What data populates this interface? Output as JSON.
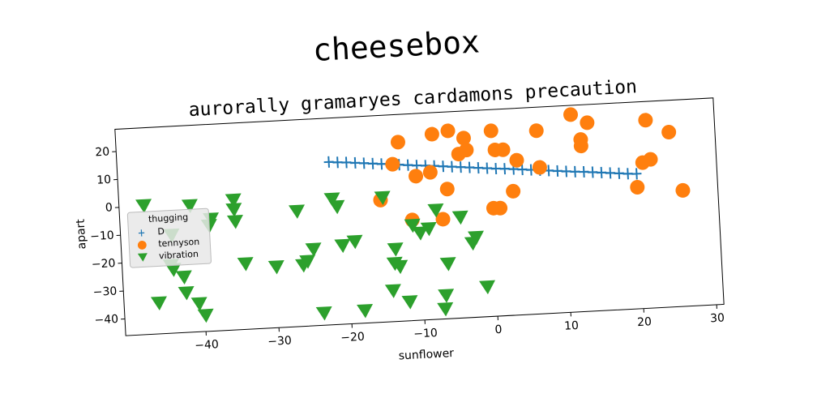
{
  "chart_data": {
    "type": "scatter",
    "suptitle": "cheesebox",
    "title": "aurorally gramaryes cardamons precaution",
    "xlabel": "sunflower",
    "ylabel": "apart",
    "legend_title": "thugging",
    "legend": "center left",
    "xlim": [
      -51,
      31
    ],
    "ylim": [
      -46,
      28
    ],
    "xticks": [
      {
        "value": -40,
        "label": "−40"
      },
      {
        "value": -30,
        "label": "−30"
      },
      {
        "value": -20,
        "label": "−20"
      },
      {
        "value": -10,
        "label": "−10"
      },
      0,
      10,
      20,
      30
    ],
    "yticks": [
      {
        "value": -40,
        "label": "−40"
      },
      {
        "value": -30,
        "label": "−30"
      },
      {
        "value": -20,
        "label": "−20"
      },
      {
        "value": -10,
        "label": "−10"
      },
      0,
      10,
      20
    ],
    "series": [
      {
        "name": "D",
        "color": "#1f77b4",
        "marker": "plus",
        "linestyle": "-",
        "x": [
          -22,
          -20.8,
          -19.6,
          -18.4,
          -17.2,
          -16,
          -14.8,
          -13.6,
          -12.4,
          -11.2,
          -10,
          -8.8,
          -7.6,
          -6.4,
          -5.2,
          -4,
          -2.8,
          -1.6,
          -0.4,
          0.8,
          2,
          3.2,
          4.4,
          5.6,
          6.8,
          8,
          9.2,
          10.4,
          11.6,
          12.8,
          14,
          15.2,
          16.4,
          17.6,
          18.8,
          20
        ],
        "values": [
          12.3,
          12.0,
          11.8,
          11.5,
          11.2,
          10.9,
          10.6,
          10.3,
          10.0,
          9.7,
          9.4,
          9.2,
          8.9,
          8.6,
          8.3,
          8.0,
          7.7,
          7.4,
          7.1,
          6.8,
          6.6,
          6.3,
          6.0,
          5.7,
          5.4,
          5.1,
          4.8,
          4.5,
          4.2,
          4.0,
          3.7,
          3.4,
          3.1,
          2.8,
          2.5,
          2.3
        ]
      },
      {
        "name": "tennyson",
        "color": "#ff7f0e",
        "marker": "circle",
        "x": [
          -12.4,
          -7.7,
          -5.5,
          -3.4,
          -4.2,
          -3.1,
          0.4,
          0.8,
          1.9,
          3.7,
          6.6,
          6.8,
          11.4,
          13.6,
          12.6,
          12.6,
          21.6,
          24.7,
          22,
          20.9,
          20,
          26.2,
          -13.3,
          -10.2,
          -8.2,
          -6,
          3,
          0.2,
          1.1,
          -15.2,
          -11,
          -6.8
        ],
        "values": [
          18.1,
          20.3,
          21.2,
          18.3,
          12.7,
          14.0,
          20.4,
          13.5,
          13.4,
          9.4,
          19.6,
          6.4,
          24.7,
          21.5,
          15.6,
          13.3,
          21.3,
          16.6,
          7.2,
          6.2,
          -2.5,
          -4.5,
          10.3,
          5.6,
          6.7,
          0.4,
          -1.6,
          -7.3,
          -7.4,
          -2.3,
          -10,
          -10.3
        ]
      },
      {
        "name": "vibration",
        "color": "#2ca02c",
        "marker": "triangle-down",
        "x": [
          -47.6,
          -41.3,
          -44,
          -38.5,
          -38.8,
          -35.3,
          -35.3,
          -35.2,
          -26.7,
          -21.8,
          -21.2,
          -14.9,
          -34.1,
          -29.9,
          -25.6,
          -24.7,
          -26.2,
          -20.7,
          -19,
          -13.5,
          -13.7,
          -13,
          -11,
          -10,
          -8.8,
          -7.7,
          -4.4,
          -2.4,
          -2.9,
          -6.4,
          -14.1,
          -11.9,
          -6.9,
          -7.1,
          -1.2,
          -44,
          -42.6,
          -42.4,
          -46.2,
          -40.7,
          -39.9,
          -23.7,
          -18.1,
          -44.3
        ],
        "values": [
          0.1,
          -0.8,
          -11,
          -6,
          -8.3,
          0.4,
          -3,
          -7.3,
          -4.8,
          -1.1,
          -3.9,
          -1.5,
          -22.6,
          -24.3,
          -22.9,
          -18.7,
          -24.2,
          -17.9,
          -16.7,
          -20.2,
          -25.3,
          -26.5,
          -12,
          -14.9,
          -13.5,
          -7,
          -10,
          -17.5,
          -19.5,
          -26.4,
          -35,
          -39.3,
          -37.7,
          -42.5,
          -35.4,
          -23.3,
          -26.2,
          -31.9,
          -35,
          -36,
          -40.3,
          -41.7,
          -41.6,
          -21.8
        ]
      }
    ]
  }
}
